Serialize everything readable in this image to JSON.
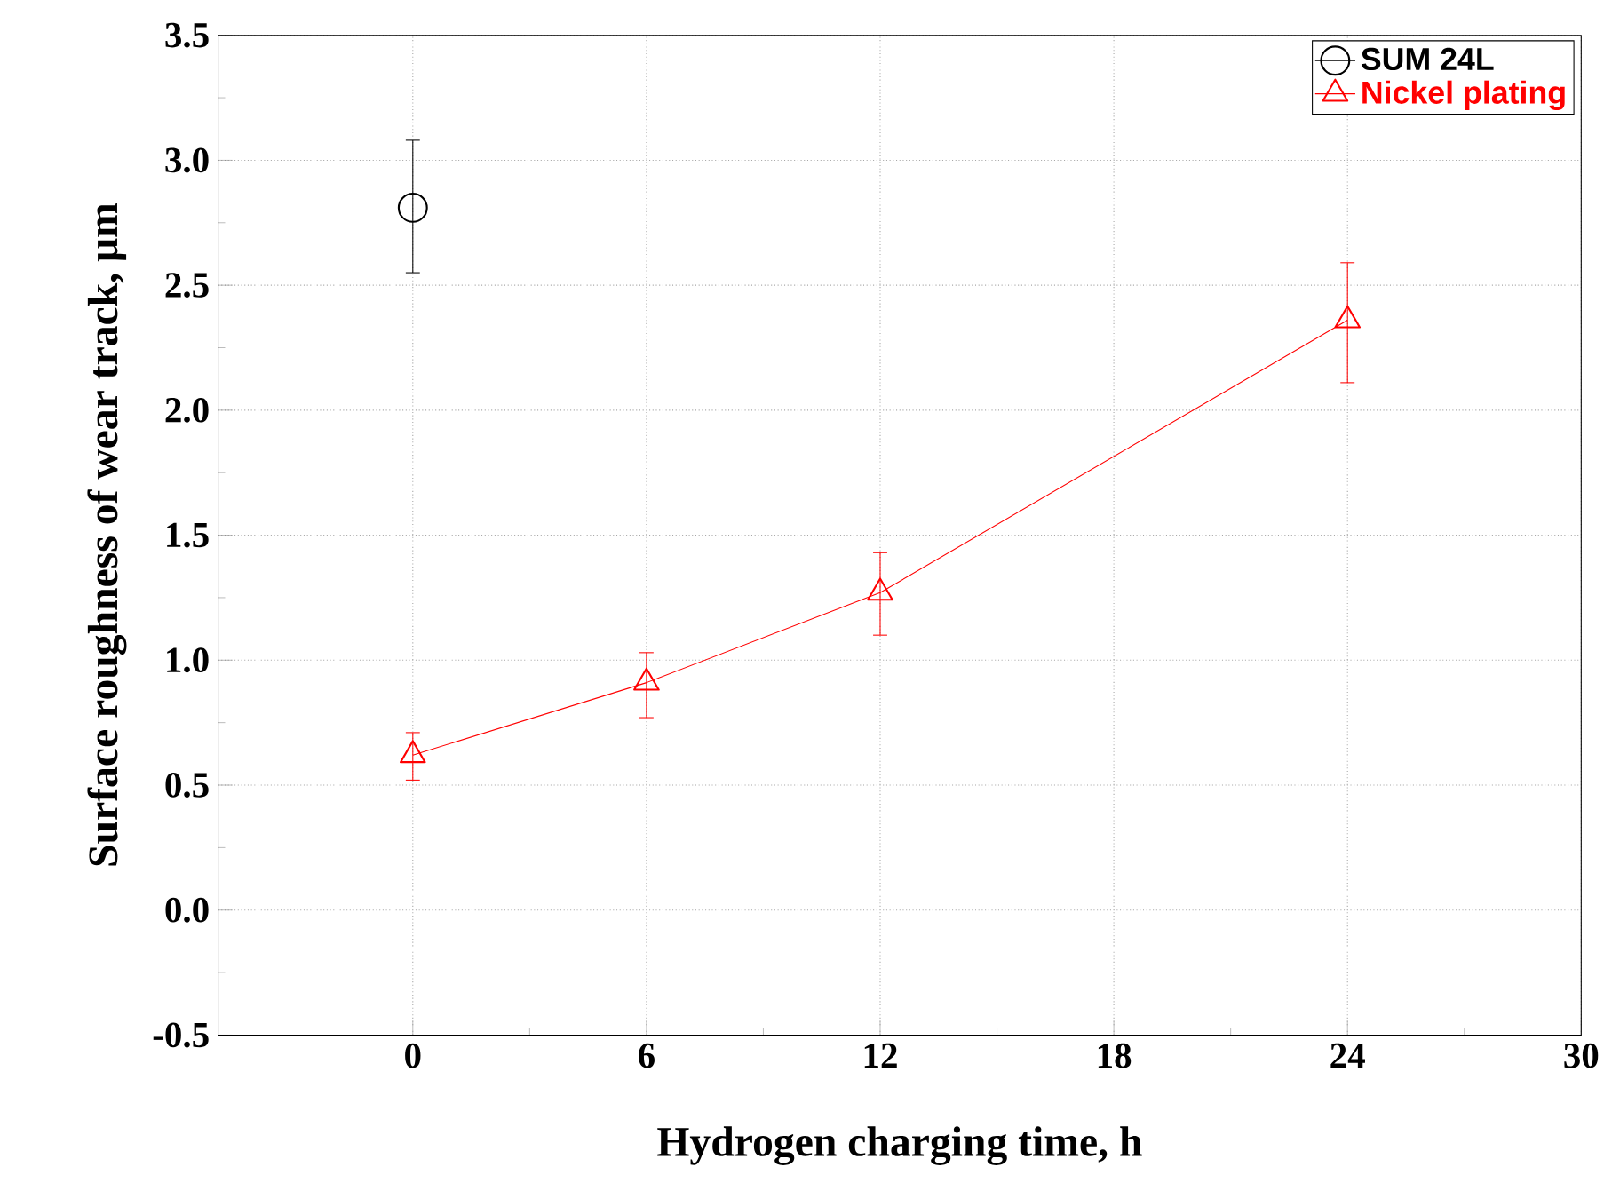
{
  "chart_data": {
    "type": "line",
    "xlabel": "Hydrogen charging time, h",
    "ylabel": "Surface roughness of wear track, μm",
    "xlim": [
      -5,
      30
    ],
    "xticks": [
      0,
      6,
      12,
      18,
      24,
      30
    ],
    "ylim": [
      -0.5,
      3.5
    ],
    "yticks": [
      {
        "value": -0.5,
        "label": "-0.5"
      },
      {
        "value": 0,
        "label": "0.0"
      },
      {
        "value": 0.5,
        "label": "0.5"
      },
      {
        "value": 1,
        "label": "1.0"
      },
      {
        "value": 1.5,
        "label": "1.5"
      },
      {
        "value": 2,
        "label": "2.0"
      },
      {
        "value": 2.5,
        "label": "2.5"
      },
      {
        "value": 3,
        "label": "3.0"
      },
      {
        "value": 3.5,
        "label": "3.5"
      }
    ],
    "grid": true,
    "legend": "top right",
    "series": [
      {
        "name": "SUM 24L",
        "color": "#000000",
        "marker": "circle",
        "x": [
          0
        ],
        "values": [
          2.81
        ],
        "errors": [
          [
            2.55,
            3.08
          ]
        ]
      },
      {
        "name": "Nickel plating",
        "color": "#ff0000",
        "marker": "triangle",
        "x": [
          0,
          6,
          12,
          24
        ],
        "values": [
          0.62,
          0.91,
          1.27,
          2.36
        ],
        "errors": [
          [
            0.52,
            0.71
          ],
          [
            0.77,
            1.03
          ],
          [
            1.1,
            1.43
          ],
          [
            2.11,
            2.59
          ]
        ]
      }
    ]
  }
}
